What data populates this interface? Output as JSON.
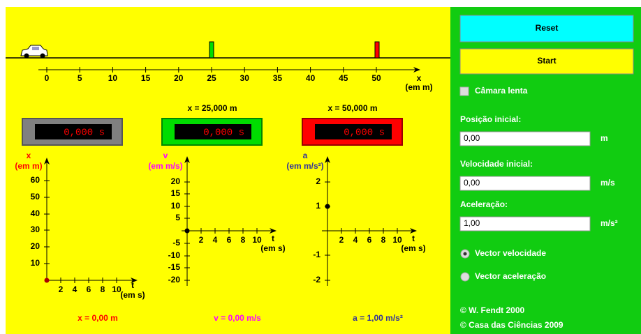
{
  "track": {
    "ticks": [
      "0",
      "5",
      "10",
      "15",
      "20",
      "25",
      "30",
      "35",
      "40",
      "45",
      "50"
    ],
    "axis_label": "x",
    "unit": "(em m)",
    "markers": [
      "x = 25,000 m",
      "x = 50,000 m"
    ]
  },
  "timers": [
    "0,000 s",
    "0,000 s",
    "0,000 s"
  ],
  "graphs": [
    {
      "y_label": "x",
      "y_unit": "(em m)",
      "y_ticks": [
        "60",
        "50",
        "40",
        "30",
        "20",
        "10"
      ],
      "x_ticks": [
        "2",
        "4",
        "6",
        "8",
        "10"
      ],
      "x_label": "t",
      "x_unit": "(em s)",
      "readout": "x = 0,00 m"
    },
    {
      "y_label": "v",
      "y_unit": "(em m/s)",
      "y_ticks": [
        "20",
        "15",
        "10",
        "5",
        "-5",
        "-10",
        "-15",
        "-20"
      ],
      "x_ticks": [
        "2",
        "4",
        "6",
        "8",
        "10"
      ],
      "x_label": "t",
      "x_unit": "(em s)",
      "readout": "v = 0,00 m/s"
    },
    {
      "y_label": "a",
      "y_unit": "(em m/s²)",
      "y_ticks": [
        "2",
        "1",
        "-1",
        "-2"
      ],
      "x_ticks": [
        "2",
        "4",
        "6",
        "8",
        "10"
      ],
      "x_label": "t",
      "x_unit": "(em s)",
      "readout": "a = 1,00 m/s²"
    }
  ],
  "panel": {
    "reset": "Reset",
    "start": "Start",
    "slow_motion": "Câmara lenta",
    "fields": [
      {
        "label": "Posição inicial:",
        "value": "0,00",
        "unit": "m"
      },
      {
        "label": "Velocidade inicial:",
        "value": "0,00",
        "unit": "m/s"
      },
      {
        "label": "Aceleração:",
        "value": "1,00",
        "unit": "m/s²"
      }
    ],
    "options": [
      "Vector velocidade",
      "Vector aceleração"
    ],
    "credits": [
      "© W. Fendt 2000",
      "© Casa das Ciências 2009"
    ]
  }
}
